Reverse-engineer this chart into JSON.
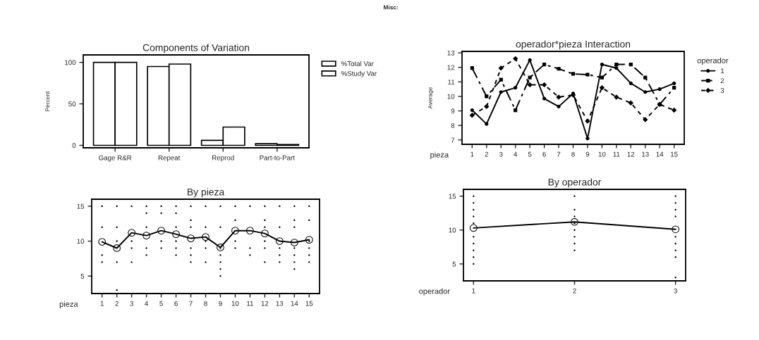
{
  "chart_data": [
    {
      "type": "bar",
      "title": "Components of Variation",
      "ylabel": "Percent",
      "categories": [
        "Gage R&R",
        "Repeat",
        "Reprod",
        "Part-to-Part"
      ],
      "series": [
        {
          "name": "%Total Var",
          "color": "#ffffff",
          "values": [
            100,
            95,
            6,
            2
          ]
        },
        {
          "name": "%Study Var",
          "color": "#ffffff",
          "values": [
            100,
            98,
            22,
            1
          ]
        }
      ],
      "ylim": [
        -3,
        109
      ],
      "yticks": [
        0,
        50,
        100
      ],
      "legend": "right",
      "grid": false
    },
    {
      "type": "line",
      "title": "operador*pieza Interaction",
      "xlabel": "pieza",
      "ylabel": "Average",
      "legend_title": "operador",
      "annotations": [
        "Misc:"
      ],
      "categories": [
        "1",
        "2",
        "3",
        "4",
        "5",
        "6",
        "7",
        "8",
        "9",
        "10",
        "11",
        "12",
        "13",
        "14",
        "15"
      ],
      "series": [
        {
          "name": "1",
          "color": "#000000",
          "line_style": "solid",
          "marker": "circle",
          "values": [
            9.05,
            8.1,
            10.3,
            10.6,
            12.5,
            9.85,
            9.3,
            10.2,
            7.1,
            12.2,
            11.95,
            10.9,
            10.3,
            10.5,
            10.9
          ]
        },
        {
          "name": "2",
          "color": "#000000",
          "line_style": "dashed",
          "marker": "square",
          "values": [
            11.95,
            10.0,
            11.15,
            9.05,
            11.3,
            12.2,
            11.9,
            11.55,
            11.5,
            11.3,
            12.2,
            12.2,
            11.3,
            9.45,
            10.6
          ]
        },
        {
          "name": "3",
          "color": "#000000",
          "line_style": "dotted",
          "marker": "diamond",
          "values": [
            8.7,
            9.3,
            11.95,
            12.6,
            10.8,
            10.8,
            9.95,
            10.1,
            8.3,
            10.6,
            9.95,
            9.55,
            8.4,
            9.45,
            9.05
          ]
        }
      ],
      "ylim": [
        6.7,
        13.1
      ],
      "yticks": [
        7,
        8,
        9,
        10,
        11,
        12,
        13
      ],
      "legend": "right",
      "grid": false
    },
    {
      "type": "line",
      "title": "By pieza",
      "xlabel": "pieza",
      "categories": [
        "1",
        "2",
        "3",
        "4",
        "5",
        "6",
        "7",
        "8",
        "9",
        "10",
        "11",
        "12",
        "13",
        "14",
        "15"
      ],
      "series": [
        {
          "type": "scatter",
          "color": "#000000",
          "marker": "circle",
          "x": [
            "1",
            "1",
            "1",
            "1",
            "2",
            "2",
            "2",
            "2",
            "2",
            "3",
            "3",
            "3",
            "3",
            "4",
            "4",
            "4",
            "4",
            "4",
            "5",
            "5",
            "5",
            "5",
            "6",
            "6",
            "6",
            "6",
            "6",
            "6",
            "7",
            "7",
            "7",
            "7",
            "7",
            "7",
            "8",
            "8",
            "8",
            "8",
            "8",
            "9",
            "9",
            "9",
            "9",
            "9",
            "9",
            "9",
            "10",
            "10",
            "10",
            "10",
            "11",
            "11",
            "11",
            "12",
            "12",
            "12",
            "12",
            "12",
            "12",
            "13",
            "13",
            "13",
            "13",
            "13",
            "14",
            "14",
            "14",
            "14",
            "14",
            "14",
            "14",
            "15",
            "15",
            "15",
            "15",
            "15",
            "15"
          ],
          "values": [
            15,
            12,
            8,
            7,
            15,
            12,
            10,
            7,
            3,
            15,
            10,
            9,
            7,
            15,
            14,
            12,
            9,
            8,
            15,
            14,
            10,
            9,
            15,
            14,
            12,
            10,
            9,
            8,
            15,
            13,
            12,
            9,
            8,
            7,
            15,
            12,
            10,
            9,
            7,
            15,
            12,
            9,
            8,
            7,
            6,
            5,
            15,
            13,
            10,
            9,
            15,
            9,
            8,
            15,
            13,
            12,
            10,
            9,
            7,
            15,
            12,
            9,
            8,
            7,
            15,
            13,
            12,
            9,
            8,
            7,
            6,
            15,
            13,
            10,
            9,
            8,
            7
          ]
        },
        {
          "type": "line",
          "color": "#000000",
          "marker": "circle",
          "line_style": "solid",
          "values": [
            9.9,
            9.0,
            11.2,
            10.8,
            11.5,
            11.0,
            10.4,
            10.6,
            9.1,
            11.5,
            11.5,
            11.1,
            10.0,
            9.8,
            10.2
          ]
        }
      ],
      "ylim": [
        2.5,
        16
      ],
      "yticks": [
        5,
        10,
        15
      ],
      "grid": false
    },
    {
      "type": "line",
      "title": "By operador",
      "xlabel": "operador",
      "categories": [
        "1",
        "2",
        "3"
      ],
      "series": [
        {
          "type": "scatter",
          "color": "#000000",
          "marker": "circle",
          "x": [
            "1",
            "1",
            "1",
            "1",
            "1",
            "1",
            "1",
            "1",
            "1",
            "1",
            "2",
            "2",
            "2",
            "2",
            "2",
            "2",
            "2",
            "2",
            "3",
            "3",
            "3",
            "3",
            "3",
            "3",
            "3",
            "3",
            "3"
          ],
          "values": [
            15,
            14,
            13,
            12,
            11,
            9,
            8,
            7,
            6,
            5,
            15,
            13,
            12,
            11,
            10,
            9,
            8,
            7,
            15,
            14,
            13,
            12,
            9,
            8,
            7,
            6,
            3
          ]
        },
        {
          "type": "line",
          "color": "#000000",
          "marker": "circle",
          "line_style": "solid",
          "values": [
            10.3,
            11.2,
            10.1
          ]
        }
      ],
      "ylim": [
        2.5,
        16
      ],
      "yticks": [
        5,
        10,
        15
      ],
      "grid": false
    }
  ]
}
